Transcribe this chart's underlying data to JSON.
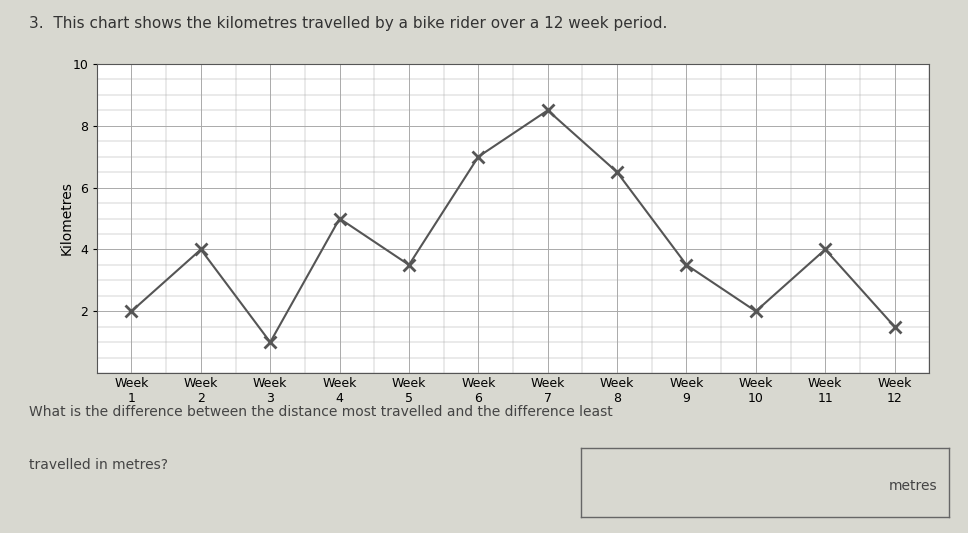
{
  "title": "3.  This chart shows the kilometres travelled by a bike rider over a 12 week period.",
  "ylabel": "Kilometres",
  "weeks": [
    1,
    2,
    3,
    4,
    5,
    6,
    7,
    8,
    9,
    10,
    11,
    12
  ],
  "values": [
    2,
    4,
    1,
    5,
    3.5,
    7,
    8.5,
    6.5,
    3.5,
    2,
    4,
    1.5
  ],
  "xlabels": [
    "Week\n1",
    "Week\n2",
    "Week\n3",
    "Week\n4",
    "Week\n5",
    "Week\n6",
    "Week\n7",
    "Week\n8",
    "Week\n9",
    "Week\n10",
    "Week\n11",
    "Week\n12"
  ],
  "ylim": [
    0,
    10
  ],
  "yticks": [
    2,
    4,
    6,
    8,
    10
  ],
  "line_color": "#555555",
  "marker": "x",
  "marker_size": 9,
  "marker_linewidth": 2,
  "grid_color": "#aaaaaa",
  "bg_color": "#ffffff",
  "fig_color": "#d8d8d0",
  "question_line1": "What is the difference between the distance most travelled and the difference least",
  "question_line2": "travelled in metres?",
  "answer_label": "metres",
  "title_fontsize": 11,
  "axis_label_fontsize": 10,
  "tick_fontsize": 9
}
